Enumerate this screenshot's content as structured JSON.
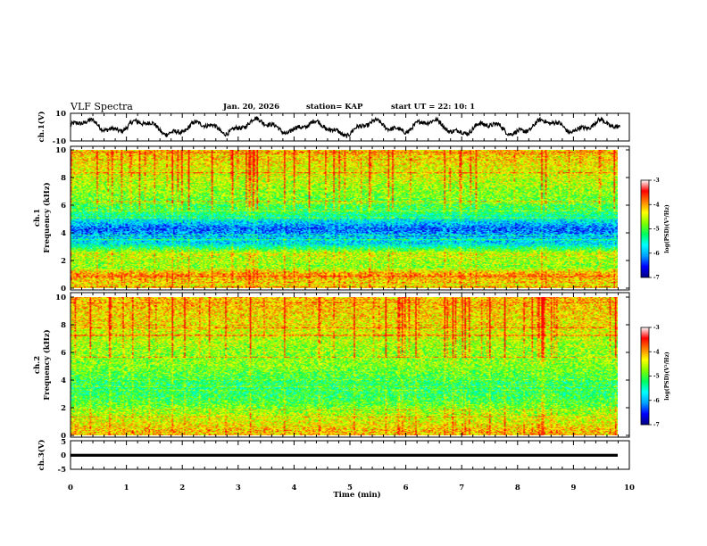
{
  "header": {
    "title": "VLF Spectra",
    "date": "Jan. 20, 2026",
    "station": "station= KAP",
    "start_ut": "start  UT =   22: 10: 1"
  },
  "chart_data": [
    {
      "type": "line",
      "id": "ch1_waveform",
      "ylabel": "ch.1(V)",
      "ylim": [
        -10,
        10
      ],
      "yticks": [
        "10",
        "-10"
      ],
      "xlim": [
        0,
        10
      ],
      "description_values": "noisy waveform oscillating roughly between -5 and +5 V"
    },
    {
      "type": "heatmap",
      "id": "ch1_spectrogram",
      "ylabel_line1": "ch.1",
      "ylabel_line2": "Frequency (kHz)",
      "ylim": [
        0,
        10
      ],
      "yticks": [
        "0",
        "2",
        "4",
        "6",
        "8",
        "10"
      ],
      "xlim": [
        0,
        9.83
      ],
      "colorbar": {
        "label": "log(PSD)(V²/Hz)",
        "range": [
          -7,
          -3
        ],
        "ticks": [
          "-3",
          "-4",
          "-5",
          "-6",
          "-7"
        ],
        "colormap": [
          "#000080",
          "#0000ff",
          "#00a0ff",
          "#00ffff",
          "#00ff60",
          "#80ff00",
          "#ffff00",
          "#ff8000",
          "#ff0000",
          "#ffffff"
        ]
      },
      "bands": [
        {
          "f": 0.3,
          "v": -4.0
        },
        {
          "f": 1.0,
          "v": -3.6
        },
        {
          "f": 1.5,
          "v": -4.5
        },
        {
          "f": 2.5,
          "v": -4.2
        },
        {
          "f": 3.2,
          "v": -5.6
        },
        {
          "f": 4.3,
          "v": -6.2
        },
        {
          "f": 5.4,
          "v": -5.0
        },
        {
          "f": 6.5,
          "v": -4.6
        },
        {
          "f": 8.0,
          "v": -4.2
        },
        {
          "f": 9.5,
          "v": -3.9
        }
      ]
    },
    {
      "type": "heatmap",
      "id": "ch2_spectrogram",
      "ylabel_line1": "ch.2",
      "ylabel_line2": "Frequency (kHz)",
      "ylim": [
        0,
        10
      ],
      "yticks": [
        "0",
        "2",
        "4",
        "6",
        "8",
        "10"
      ],
      "xlim": [
        0,
        9.83
      ],
      "colorbar": {
        "label": "log(PSD)(V²/Hz)",
        "range": [
          -7,
          -3
        ],
        "ticks": [
          "-3",
          "-4",
          "-5",
          "-6",
          "-7"
        ],
        "colormap": [
          "#000080",
          "#0000ff",
          "#00a0ff",
          "#00ffff",
          "#00ff60",
          "#80ff00",
          "#ffff00",
          "#ff8000",
          "#ff0000",
          "#ffffff"
        ]
      },
      "bands": [
        {
          "f": 0.3,
          "v": -3.8
        },
        {
          "f": 1.2,
          "v": -4.2
        },
        {
          "f": 2.5,
          "v": -4.8
        },
        {
          "f": 3.5,
          "v": -5.0
        },
        {
          "f": 5.0,
          "v": -4.5
        },
        {
          "f": 6.5,
          "v": -4.4
        },
        {
          "f": 8.0,
          "v": -4.0
        },
        {
          "f": 9.5,
          "v": -3.8
        }
      ]
    },
    {
      "type": "line",
      "id": "ch3_waveform",
      "ylabel": "ch.3(V)",
      "ylim": [
        -5,
        5
      ],
      "yticks": [
        "5",
        "0",
        "-5"
      ],
      "xlim": [
        0,
        10
      ],
      "value_band": [
        -0.6,
        0.4
      ]
    }
  ],
  "xaxis": {
    "label": "Time  (min)",
    "ticks": [
      "0",
      "1",
      "2",
      "3",
      "4",
      "5",
      "6",
      "7",
      "8",
      "9",
      "10"
    ],
    "range": [
      0,
      10
    ]
  }
}
